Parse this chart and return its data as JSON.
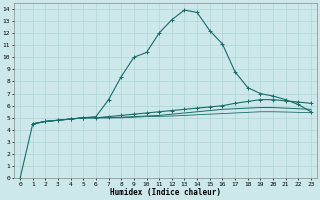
{
  "title": "",
  "xlabel": "Humidex (Indice chaleur)",
  "bg_color": "#cce8ea",
  "grid_color": "#aad0d4",
  "line_color": "#1a6b6b",
  "xlim": [
    -0.5,
    23.5
  ],
  "ylim": [
    0,
    14.5
  ],
  "xticks": [
    0,
    1,
    2,
    3,
    4,
    5,
    6,
    7,
    8,
    9,
    10,
    11,
    12,
    13,
    14,
    15,
    16,
    17,
    18,
    19,
    20,
    21,
    22,
    23
  ],
  "yticks": [
    0,
    1,
    2,
    3,
    4,
    5,
    6,
    7,
    8,
    9,
    10,
    11,
    12,
    13,
    14
  ],
  "line1_x": [
    0,
    1,
    2,
    3,
    4,
    5,
    6,
    7,
    8,
    9,
    10,
    11,
    12,
    13,
    14,
    15,
    16,
    17,
    18,
    19,
    20,
    21,
    22,
    23
  ],
  "line1_y": [
    0,
    4.5,
    4.7,
    4.8,
    4.9,
    5.0,
    5.1,
    6.5,
    8.4,
    10.0,
    10.4,
    12.0,
    13.1,
    13.9,
    13.7,
    12.2,
    11.1,
    8.8,
    7.5,
    7.0,
    6.8,
    6.5,
    6.1,
    5.5
  ],
  "line2_x": [
    1,
    2,
    3,
    4,
    5,
    6,
    7,
    8,
    9,
    10,
    11,
    12,
    13,
    14,
    15,
    16,
    17,
    18,
    19,
    20,
    21,
    22,
    23
  ],
  "line2_y": [
    4.5,
    4.7,
    4.8,
    4.9,
    5.0,
    5.0,
    5.1,
    5.2,
    5.3,
    5.4,
    5.5,
    5.6,
    5.7,
    5.8,
    5.9,
    6.0,
    6.2,
    6.35,
    6.5,
    6.5,
    6.4,
    6.3,
    6.2
  ],
  "line3_x": [
    1,
    2,
    3,
    4,
    5,
    6,
    7,
    8,
    9,
    10,
    11,
    12,
    13,
    14,
    15,
    16,
    17,
    18,
    19,
    20,
    21,
    22,
    23
  ],
  "line3_y": [
    4.5,
    4.7,
    4.8,
    4.9,
    5.0,
    5.0,
    5.0,
    5.05,
    5.1,
    5.15,
    5.2,
    5.3,
    5.4,
    5.5,
    5.6,
    5.7,
    5.75,
    5.8,
    5.85,
    5.85,
    5.8,
    5.75,
    5.7
  ],
  "line4_x": [
    1,
    2,
    3,
    4,
    5,
    6,
    7,
    8,
    9,
    10,
    11,
    12,
    13,
    14,
    15,
    16,
    17,
    18,
    19,
    20,
    21,
    22,
    23
  ],
  "line4_y": [
    4.5,
    4.7,
    4.8,
    4.9,
    5.0,
    5.0,
    5.0,
    5.0,
    5.05,
    5.1,
    5.12,
    5.15,
    5.2,
    5.25,
    5.3,
    5.35,
    5.4,
    5.45,
    5.5,
    5.5,
    5.48,
    5.45,
    5.42
  ]
}
